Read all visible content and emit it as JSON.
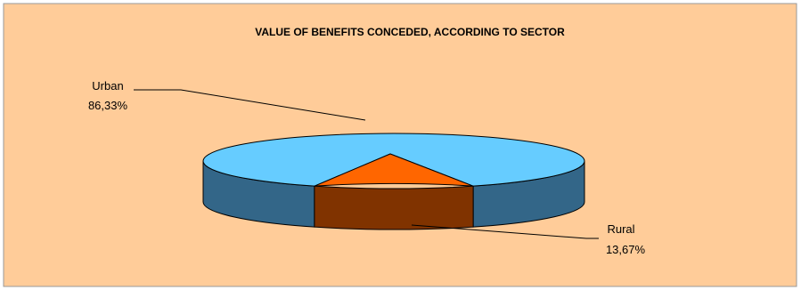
{
  "chart_data": {
    "type": "pie",
    "title": "VALUE OF BENEFITS CONCEDED, ACCORDING TO SECTOR",
    "slices": [
      {
        "label": "Urban",
        "value_label": "86,33%",
        "value": 86.33,
        "top_color": "#66CCFF",
        "side_color": "#336688"
      },
      {
        "label": "Rural",
        "value_label": "13,67%",
        "value": 13.67,
        "top_color": "#FF6600",
        "side_color": "#803300"
      }
    ],
    "style": "3d",
    "legend": "none"
  },
  "colors": {
    "plot_background": "#FFCC99",
    "border": "#999999",
    "edge": "#000000"
  }
}
